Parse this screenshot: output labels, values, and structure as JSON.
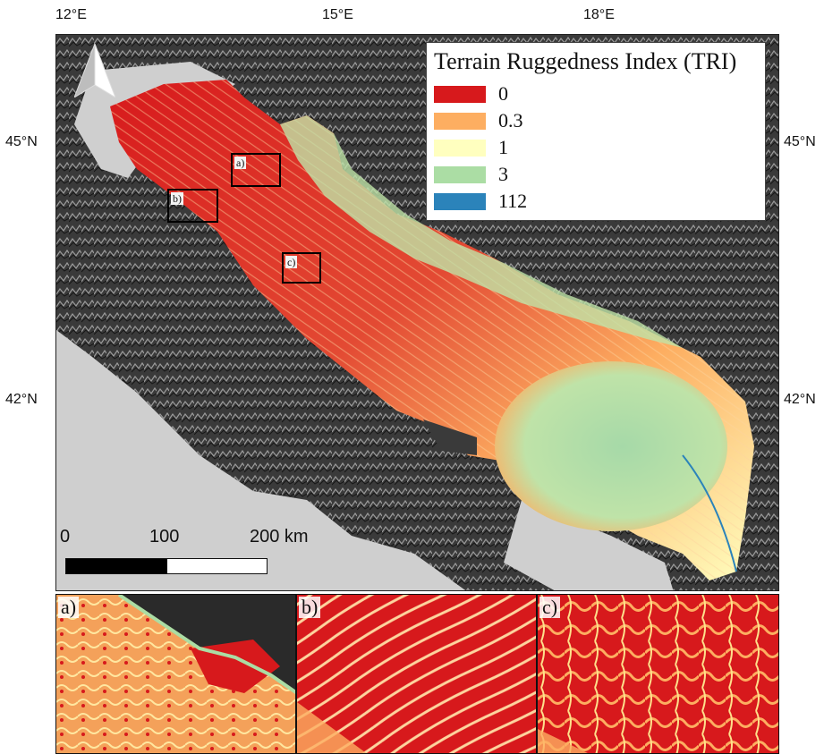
{
  "axes": {
    "lon_ticks": [
      "12°E",
      "15°E",
      "18°E"
    ],
    "lat_ticks": [
      "45°N",
      "42°N"
    ]
  },
  "legend": {
    "title": "Terrain Ruggedness Index (TRI)",
    "items": [
      {
        "label": "0",
        "color": "#d7191c"
      },
      {
        "label": "0.3",
        "color": "#fdae61"
      },
      {
        "label": "1",
        "color": "#ffffbf"
      },
      {
        "label": "3",
        "color": "#abdda4"
      },
      {
        "label": "112",
        "color": "#2b83ba"
      }
    ]
  },
  "scale_bar": {
    "labels": [
      "0",
      "100",
      "200 km"
    ]
  },
  "insets": {
    "a": "a)",
    "b": "b)",
    "c": "c)"
  },
  "panels": {
    "a": "a)",
    "b": "b)",
    "c": "c)"
  },
  "colors": {
    "land_dark": "#2e2e2e",
    "land_light": "#8a8a8a",
    "sea_no_data": "#cfcfcf"
  },
  "icons": {
    "north_arrow": "north-arrow-icon"
  }
}
